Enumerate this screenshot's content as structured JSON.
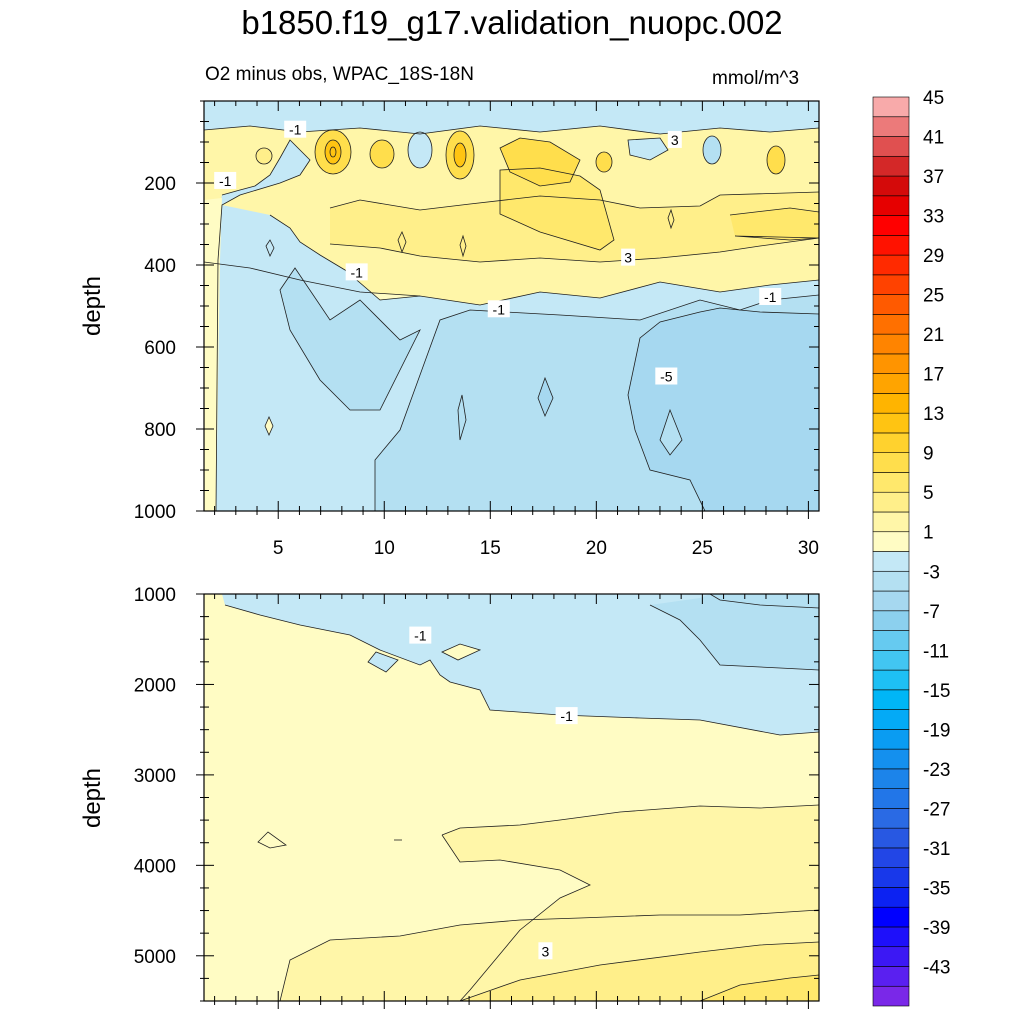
{
  "chart_data": {
    "type": "contour",
    "title": "b1850.f19_g17.validation_nuopc.002",
    "subtitle_left": "O2 minus obs, WPAC_18S-18N",
    "units": "mmol/m^3",
    "x_range": [
      1.5,
      30.5
    ],
    "x_ticks": [
      5,
      10,
      15,
      20,
      25,
      30
    ],
    "panels": [
      {
        "name": "upper",
        "ylabel": "depth",
        "ylim": [
          0,
          1000
        ],
        "y_ticks": [
          200,
          400,
          600,
          800,
          1000
        ],
        "contour_labels": [
          {
            "x": 5.8,
            "depth": 70,
            "text": "-1"
          },
          {
            "x": 2.5,
            "depth": 195,
            "text": "-1"
          },
          {
            "x": 23.7,
            "depth": 95,
            "text": "3"
          },
          {
            "x": 8.7,
            "depth": 418,
            "text": "-1"
          },
          {
            "x": 21.5,
            "depth": 382,
            "text": "3"
          },
          {
            "x": 15.4,
            "depth": 508,
            "text": "-1"
          },
          {
            "x": 28.2,
            "depth": 478,
            "text": "-1"
          },
          {
            "x": 23.3,
            "depth": 672,
            "text": "-5"
          }
        ]
      },
      {
        "name": "lower",
        "ylabel": "depth",
        "ylim": [
          1000,
          5500
        ],
        "y_ticks": [
          1000,
          2000,
          3000,
          4000,
          5000
        ],
        "contour_labels": [
          {
            "x": 11.7,
            "depth": 1460,
            "text": "-1"
          },
          {
            "x": 18.6,
            "depth": 2350,
            "text": "-1"
          },
          {
            "x": 17.6,
            "depth": 4950,
            "text": "3"
          }
        ]
      }
    ],
    "colorbar": {
      "levels": [
        -45,
        -43,
        -41,
        -39,
        -37,
        -35,
        -33,
        -31,
        -29,
        -27,
        -25,
        -23,
        -21,
        -19,
        -17,
        -15,
        -13,
        -11,
        -9,
        -7,
        -5,
        -3,
        -1,
        1,
        3,
        5,
        7,
        9,
        11,
        13,
        15,
        17,
        19,
        21,
        23,
        25,
        27,
        29,
        31,
        33,
        35,
        37,
        39,
        41,
        43,
        45
      ],
      "labels": [
        "45",
        "41",
        "37",
        "33",
        "29",
        "25",
        "21",
        "17",
        "13",
        "9",
        "5",
        "1",
        "-3",
        "-7",
        "-11",
        "-15",
        "-19",
        "-23",
        "-27",
        "-31",
        "-35",
        "-39",
        "-43"
      ],
      "colors": [
        "#7a28e8",
        "#5a20f0",
        "#3c18f4",
        "#1e10fa",
        "#0000ff",
        "#0c22f2",
        "#1838ea",
        "#2246e6",
        "#2858e2",
        "#2a6ae4",
        "#2276e8",
        "#1c84ea",
        "#1490ee",
        "#0a9cf2",
        "#04aaf6",
        "#00b6f6",
        "#1ec0f4",
        "#42c6f2",
        "#66caf0",
        "#8cd0ee",
        "#a6d8f0",
        "#b4e0f2",
        "#c4e8f6",
        "#fffcc4",
        "#fff6a8",
        "#ffef8a",
        "#ffe86c",
        "#ffde4c",
        "#ffd22e",
        "#ffc412",
        "#ffb400",
        "#ffa400",
        "#ff9400",
        "#ff8400",
        "#ff7000",
        "#ff5a00",
        "#ff4200",
        "#ff2a00",
        "#ff1200",
        "#ff0000",
        "#e60000",
        "#d40a0a",
        "#d42828",
        "#e05050",
        "#ec7a7a",
        "#f8aaaa"
      ]
    }
  }
}
